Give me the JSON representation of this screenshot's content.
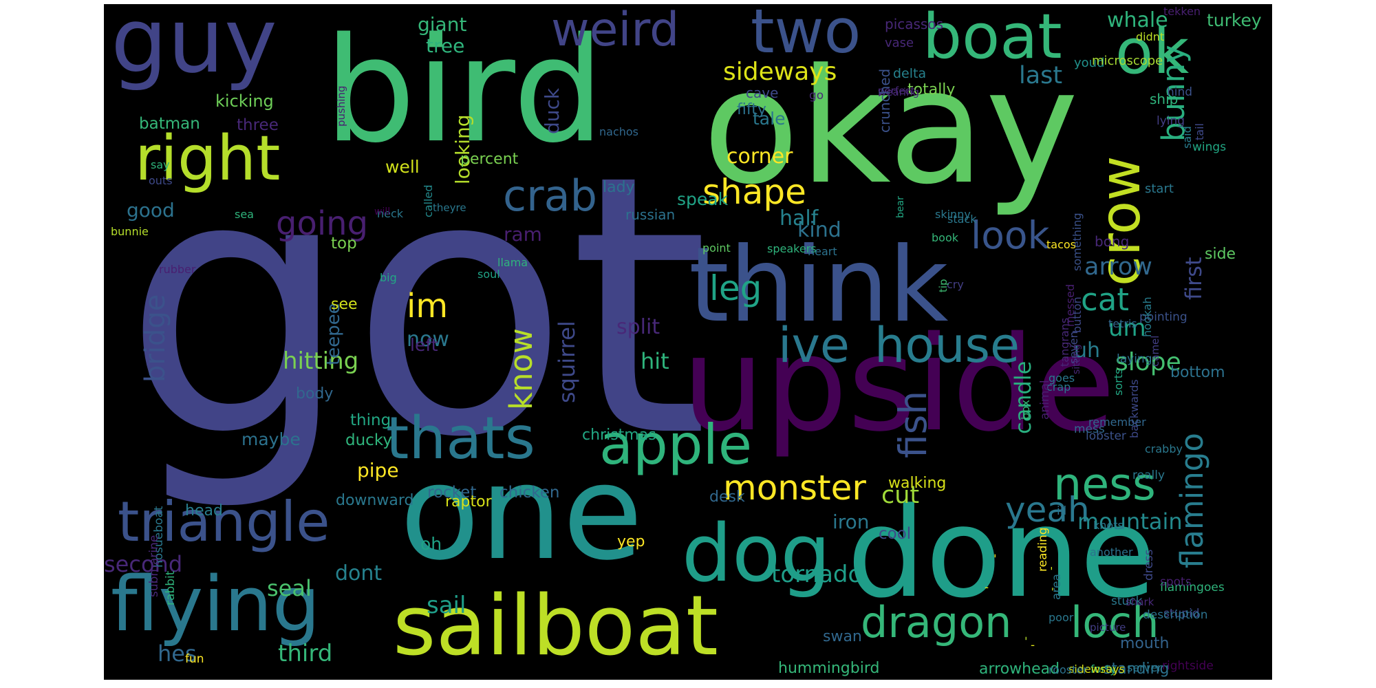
{
  "word_cloud": {
    "words": [
      {
        "text": "got",
        "color": "#414487"
      },
      {
        "text": "okay",
        "color": "#5ec962"
      },
      {
        "text": "bird",
        "color": "#3fbc73"
      },
      {
        "text": "upside",
        "color": "#440154"
      },
      {
        "text": "one",
        "color": "#21918c"
      },
      {
        "text": "done",
        "color": "#1f9e89"
      },
      {
        "text": "think",
        "color": "#3b528b"
      },
      {
        "text": "guy",
        "color": "#414487"
      },
      {
        "text": "sailboat",
        "color": "#bddf26"
      },
      {
        "text": "flying",
        "color": "#2a788e"
      },
      {
        "text": "dog",
        "color": "#1f9e89"
      },
      {
        "text": "thats",
        "color": "#2a788e"
      },
      {
        "text": "apple",
        "color": "#2fb47c"
      },
      {
        "text": "boat",
        "color": "#35b779"
      },
      {
        "text": "crow",
        "color": "#c2df23"
      },
      {
        "text": "two",
        "color": "#3b528b"
      },
      {
        "text": "ok",
        "color": "#35b779"
      },
      {
        "text": "right",
        "color": "#b5de2b"
      },
      {
        "text": "triangle",
        "color": "#3b528b"
      },
      {
        "text": "dragon",
        "color": "#35b779"
      },
      {
        "text": "loch",
        "color": "#35b779"
      },
      {
        "text": "house",
        "color": "#287d8e"
      },
      {
        "text": "ive",
        "color": "#2a788e"
      },
      {
        "text": "ness",
        "color": "#2fb47c"
      },
      {
        "text": "weird",
        "color": "#414487"
      },
      {
        "text": "crab",
        "color": "#33638d"
      },
      {
        "text": "monster",
        "color": "#fde725"
      },
      {
        "text": "look",
        "color": "#39558c"
      },
      {
        "text": "shape",
        "color": "#fde725"
      },
      {
        "text": "leg",
        "color": "#20a386"
      },
      {
        "text": "fish",
        "color": "#3b528b"
      },
      {
        "text": "flamingo",
        "color": "#287d8e"
      },
      {
        "text": "yeah",
        "color": "#2a788e"
      },
      {
        "text": "bunny",
        "color": "#29af7f"
      },
      {
        "text": "going",
        "color": "#481f70"
      },
      {
        "text": "know",
        "color": "#b8de29"
      },
      {
        "text": "cat",
        "color": "#20a386"
      },
      {
        "text": "sideways",
        "color": "#dde318"
      },
      {
        "text": "bridge",
        "color": "#3b528b"
      },
      {
        "text": "squirrel",
        "color": "#3e4989"
      },
      {
        "text": "im",
        "color": "#fde725"
      },
      {
        "text": "first",
        "color": "#3e4989"
      },
      {
        "text": "mountain",
        "color": "#238a8d"
      },
      {
        "text": "arrow",
        "color": "#31688e"
      },
      {
        "text": "last",
        "color": "#2a788e"
      },
      {
        "text": "slope",
        "color": "#44bf70"
      },
      {
        "text": "candle",
        "color": "#29af7f"
      },
      {
        "text": "um",
        "color": "#20a386"
      },
      {
        "text": "tornado",
        "color": "#1f9e89"
      },
      {
        "text": "cut",
        "color": "#a0da39"
      },
      {
        "text": "hitting",
        "color": "#7ad151"
      },
      {
        "text": "sail",
        "color": "#1f9e89"
      },
      {
        "text": "third",
        "color": "#35b779"
      },
      {
        "text": "hes",
        "color": "#31688e"
      },
      {
        "text": "seal",
        "color": "#4ac16d"
      },
      {
        "text": "second",
        "color": "#482878"
      },
      {
        "text": "uh",
        "color": "#287d8e"
      },
      {
        "text": "now",
        "color": "#2a788e"
      },
      {
        "text": "split",
        "color": "#482878"
      },
      {
        "text": "hit",
        "color": "#2fb47c"
      },
      {
        "text": "kind",
        "color": "#2c728e"
      },
      {
        "text": "half",
        "color": "#26828e"
      },
      {
        "text": "corner",
        "color": "#fde725"
      },
      {
        "text": "speak",
        "color": "#20a386"
      },
      {
        "text": "whale",
        "color": "#2fb47c"
      },
      {
        "text": "turkey",
        "color": "#3fbc73"
      },
      {
        "text": "giant",
        "color": "#35b779"
      },
      {
        "text": "tree",
        "color": "#2fb47c"
      },
      {
        "text": "looking",
        "color": "#b5de2b"
      },
      {
        "text": "duck",
        "color": "#3e4989"
      },
      {
        "text": "ram",
        "color": "#481f70"
      },
      {
        "text": "good",
        "color": "#2c728e"
      },
      {
        "text": "teepee",
        "color": "#31688e"
      },
      {
        "text": "left",
        "color": "#482878"
      },
      {
        "text": "top",
        "color": "#7ad151"
      },
      {
        "text": "see",
        "color": "#d2e21b"
      },
      {
        "text": "pipe",
        "color": "#fde725"
      },
      {
        "text": "maybe",
        "color": "#2c728e"
      },
      {
        "text": "dont",
        "color": "#26828e"
      },
      {
        "text": "iron",
        "color": "#2a788e"
      },
      {
        "text": "oh",
        "color": "#20a386"
      },
      {
        "text": "bottom",
        "color": "#2c728e"
      },
      {
        "text": "well",
        "color": "#d2e21b"
      },
      {
        "text": "rocket",
        "color": "#31688e"
      },
      {
        "text": "chicken",
        "color": "#31688e"
      },
      {
        "text": "christmas",
        "color": "#22a884"
      },
      {
        "text": "kicking",
        "color": "#6ece58"
      },
      {
        "text": "batman",
        "color": "#35b779"
      },
      {
        "text": "downward",
        "color": "#2a788e"
      },
      {
        "text": "thing",
        "color": "#22a884"
      },
      {
        "text": "ducky",
        "color": "#2fb47c"
      },
      {
        "text": "body",
        "color": "#31688e"
      },
      {
        "text": "raptor",
        "color": "#d8e219"
      },
      {
        "text": "yep",
        "color": "#fde725"
      },
      {
        "text": "percent",
        "color": "#7ad151"
      },
      {
        "text": "three",
        "color": "#482878"
      },
      {
        "text": "head",
        "color": "#287d8e"
      },
      {
        "text": "walking",
        "color": "#d8e219"
      },
      {
        "text": "cool",
        "color": "#3e4989"
      },
      {
        "text": "desk",
        "color": "#31688e"
      },
      {
        "text": "russian",
        "color": "#2c728e"
      },
      {
        "text": "tale",
        "color": "#2a788e"
      },
      {
        "text": "lady",
        "color": "#2c728e"
      },
      {
        "text": "totally",
        "color": "#7ad151"
      },
      {
        "text": "ship",
        "color": "#2fb47c"
      },
      {
        "text": "side",
        "color": "#5ec962"
      },
      {
        "text": "swan",
        "color": "#31688e"
      },
      {
        "text": "hummingbird",
        "color": "#35b779"
      },
      {
        "text": "standing",
        "color": "#2c728e"
      },
      {
        "text": "arrowhead",
        "color": "#2fb47c"
      },
      {
        "text": "mouth",
        "color": "#33638d"
      },
      {
        "text": "cave",
        "color": "#3e4989"
      },
      {
        "text": "fifty",
        "color": "#2c728e"
      },
      {
        "text": "picassos",
        "color": "#482878"
      },
      {
        "text": "tekken",
        "color": "#481f70"
      },
      {
        "text": "didnt",
        "color": "#bddf26"
      },
      {
        "text": "vase",
        "color": "#482878"
      },
      {
        "text": "delta",
        "color": "#26828e"
      },
      {
        "text": "youd",
        "color": "#21918c"
      },
      {
        "text": "microscope",
        "color": "#a8db34"
      },
      {
        "text": "pushing",
        "color": "#481f70"
      },
      {
        "text": "go",
        "color": "#482878"
      },
      {
        "text": "perfect",
        "color": "#482878"
      },
      {
        "text": "wearing",
        "color": "#482878"
      },
      {
        "text": "hind",
        "color": "#3b528b"
      },
      {
        "text": "lying",
        "color": "#433e85"
      },
      {
        "text": "wings",
        "color": "#22a884"
      },
      {
        "text": "nachos",
        "color": "#31688e"
      },
      {
        "text": "said",
        "color": "#287d8e"
      },
      {
        "text": "crunched",
        "color": "#3b528b"
      },
      {
        "text": "tail",
        "color": "#3e4989"
      },
      {
        "text": "start",
        "color": "#2a788e"
      },
      {
        "text": "say",
        "color": "#2fb47c"
      },
      {
        "text": "outs",
        "color": "#3e4989"
      },
      {
        "text": "called",
        "color": "#238a8d"
      },
      {
        "text": "theyre",
        "color": "#2a788e"
      },
      {
        "text": "sea",
        "color": "#2fb47c"
      },
      {
        "text": "neck",
        "color": "#2a788e"
      },
      {
        "text": "will",
        "color": "#440154"
      },
      {
        "text": "skinny",
        "color": "#2a788e"
      },
      {
        "text": "bear",
        "color": "#22a884"
      },
      {
        "text": "stack",
        "color": "#2a788e"
      },
      {
        "text": "book",
        "color": "#35b779"
      },
      {
        "text": "tacos",
        "color": "#fde725"
      },
      {
        "text": "bunnie",
        "color": "#b5de2b"
      },
      {
        "text": "point",
        "color": "#5ec962"
      },
      {
        "text": "speakers",
        "color": "#2fb47c"
      },
      {
        "text": "heart",
        "color": "#2c728e"
      },
      {
        "text": "soul",
        "color": "#20a386"
      },
      {
        "text": "llama",
        "color": "#2fb47c"
      },
      {
        "text": "big",
        "color": "#22a884"
      },
      {
        "text": "rubber",
        "color": "#481f70"
      },
      {
        "text": "cry",
        "color": "#433e85"
      },
      {
        "text": "tip",
        "color": "#3fbc73"
      },
      {
        "text": "bong",
        "color": "#482878"
      },
      {
        "text": "something",
        "color": "#3b528b"
      },
      {
        "text": "pointing",
        "color": "#3b528b"
      },
      {
        "text": "tetris",
        "color": "#31688e"
      },
      {
        "text": "hookah",
        "color": "#287d8e"
      },
      {
        "text": "goes",
        "color": "#2a788e"
      },
      {
        "text": "sorts",
        "color": "#22a884"
      },
      {
        "text": "laying",
        "color": "#2c728e"
      },
      {
        "text": "messed",
        "color": "#481f70"
      },
      {
        "text": "crap",
        "color": "#2a788e"
      },
      {
        "text": "animal",
        "color": "#481f70"
      },
      {
        "text": "box",
        "color": "#35b779"
      },
      {
        "text": "button",
        "color": "#3e4989"
      },
      {
        "text": "seven",
        "color": "#3e4989"
      },
      {
        "text": "tangrans",
        "color": "#482878"
      },
      {
        "text": "sitting",
        "color": "#482878"
      },
      {
        "text": "camel",
        "color": "#433e85"
      },
      {
        "text": "lobster",
        "color": "#3b528b"
      },
      {
        "text": "mess",
        "color": "#31688e"
      },
      {
        "text": "remember",
        "color": "#31688e"
      },
      {
        "text": "crabby",
        "color": "#2a788e"
      },
      {
        "text": "backwards",
        "color": "#3e4989"
      },
      {
        "text": "ill",
        "color": "#2c728e"
      },
      {
        "text": "knots",
        "color": "#2a788e"
      },
      {
        "text": "really",
        "color": "#2a788e"
      },
      {
        "text": "another",
        "color": "#2c728e"
      },
      {
        "text": "dress",
        "color": "#3e4989"
      },
      {
        "text": "stuck",
        "color": "#2a788e"
      },
      {
        "text": "stupid",
        "color": "#3e4989"
      },
      {
        "text": "description",
        "color": "#2c728e"
      },
      {
        "text": "area",
        "color": "#2a788e"
      },
      {
        "text": "reading",
        "color": "#fde725"
      },
      {
        "text": "picture",
        "color": "#433e85"
      },
      {
        "text": "poor",
        "color": "#2a788e"
      },
      {
        "text": "flamingoes",
        "color": "#2fb47c"
      },
      {
        "text": "spots",
        "color": "#481f70"
      },
      {
        "text": "shark",
        "color": "#482878"
      },
      {
        "text": "rightside",
        "color": "#440154"
      },
      {
        "text": "server",
        "color": "#2a788e"
      },
      {
        "text": "forty",
        "color": "#2fb47c"
      },
      {
        "text": "sidewsays",
        "color": "#d8e219"
      },
      {
        "text": "fun",
        "color": "#fde725"
      },
      {
        "text": "rabbit",
        "color": "#2fb47c"
      },
      {
        "text": "hosueboat",
        "color": "#2a788e"
      },
      {
        "text": "submarine",
        "color": "#482878"
      },
      {
        "text": "rooster",
        "color": "#2c728e"
      },
      {
        "text": "-",
        "color": "#d2e21b"
      },
      {
        "text": "-",
        "color": "#dde318"
      },
      {
        "text": "-",
        "color": "#d8e219"
      },
      {
        "text": "-",
        "color": "#d2e21b"
      },
      {
        "text": "-",
        "color": "#b5de2b"
      },
      {
        "text": "-",
        "color": "#fde725"
      }
    ]
  }
}
